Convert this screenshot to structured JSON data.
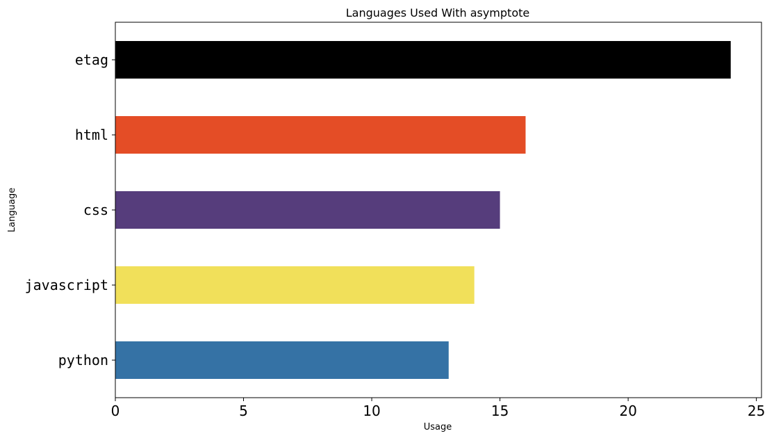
{
  "chart_data": {
    "type": "bar",
    "orientation": "horizontal",
    "title": "Languages Used With asymptote",
    "xlabel": "Usage",
    "ylabel": "Language",
    "categories": [
      "etag",
      "html",
      "css",
      "javascript",
      "python"
    ],
    "values": [
      24,
      16,
      15,
      14,
      13
    ],
    "colors": [
      "#000000",
      "#e44d26",
      "#563d7c",
      "#f1e05a",
      "#3572a5"
    ],
    "xlim": [
      0,
      25.2
    ],
    "xticks": [
      0,
      5,
      10,
      15,
      20,
      25
    ],
    "grid": false,
    "legend": "none"
  }
}
